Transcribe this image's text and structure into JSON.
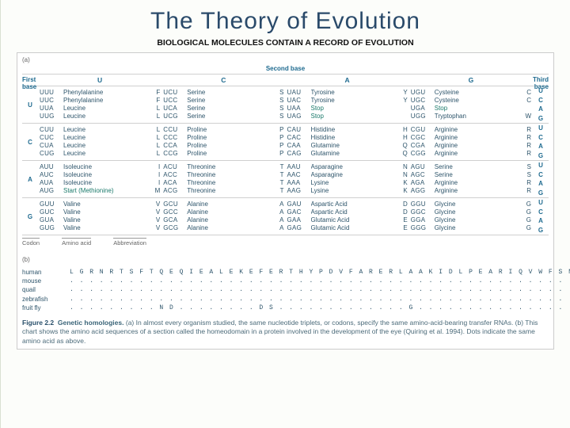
{
  "title": "The Theory of Evolution",
  "subtitle": "BIOLOGICAL MOLECULES CONTAIN A RECORD OF EVOLUTION",
  "fig": {
    "tag_a": "(a)",
    "tag_b": "(b)",
    "hdr_first": "First\nbase",
    "hdr_second": "Second base",
    "hdr_third": "Third\nbase",
    "cols": [
      "U",
      "C",
      "A",
      "G"
    ],
    "rows": [
      "U",
      "C",
      "A",
      "G"
    ],
    "third": [
      "U",
      "C",
      "A",
      "G"
    ],
    "legend_codon": "Codon",
    "legend_aa": "Amino acid",
    "legend_ab": "Abbreviation",
    "cells": {
      "U": {
        "U": [
          [
            "UUU",
            "Phenylalanine",
            "F"
          ],
          [
            "UUC",
            "Phenylalanine",
            "F"
          ],
          [
            "UUA",
            "Leucine",
            "L"
          ],
          [
            "UUG",
            "Leucine",
            "L"
          ]
        ],
        "C": [
          [
            "UCU",
            "Serine",
            "S"
          ],
          [
            "UCC",
            "Serine",
            "S"
          ],
          [
            "UCA",
            "Serine",
            "S"
          ],
          [
            "UCG",
            "Serine",
            "S"
          ]
        ],
        "A": [
          [
            "UAU",
            "Tyrosine",
            "Y"
          ],
          [
            "UAC",
            "Tyrosine",
            "Y"
          ],
          [
            "UAA",
            "Stop",
            ""
          ],
          [
            "UAG",
            "Stop",
            ""
          ]
        ],
        "G": [
          [
            "UGU",
            "Cysteine",
            "C"
          ],
          [
            "UGC",
            "Cysteine",
            "C"
          ],
          [
            "UGA",
            "Stop",
            ""
          ],
          [
            "UGG",
            "Tryptophan",
            "W"
          ]
        ]
      },
      "C": {
        "U": [
          [
            "CUU",
            "Leucine",
            "L"
          ],
          [
            "CUC",
            "Leucine",
            "L"
          ],
          [
            "CUA",
            "Leucine",
            "L"
          ],
          [
            "CUG",
            "Leucine",
            "L"
          ]
        ],
        "C": [
          [
            "CCU",
            "Proline",
            "P"
          ],
          [
            "CCC",
            "Proline",
            "P"
          ],
          [
            "CCA",
            "Proline",
            "P"
          ],
          [
            "CCG",
            "Proline",
            "P"
          ]
        ],
        "A": [
          [
            "CAU",
            "Histidine",
            "H"
          ],
          [
            "CAC",
            "Histidine",
            "H"
          ],
          [
            "CAA",
            "Glutamine",
            "Q"
          ],
          [
            "CAG",
            "Glutamine",
            "Q"
          ]
        ],
        "G": [
          [
            "CGU",
            "Arginine",
            "R"
          ],
          [
            "CGC",
            "Arginine",
            "R"
          ],
          [
            "CGA",
            "Arginine",
            "R"
          ],
          [
            "CGG",
            "Arginine",
            "R"
          ]
        ]
      },
      "A": {
        "U": [
          [
            "AUU",
            "Isoleucine",
            "I"
          ],
          [
            "AUC",
            "Isoleucine",
            "I"
          ],
          [
            "AUA",
            "Isoleucine",
            "I"
          ],
          [
            "AUG",
            "Start (Methionine)",
            "M"
          ]
        ],
        "C": [
          [
            "ACU",
            "Threonine",
            "T"
          ],
          [
            "ACC",
            "Threonine",
            "T"
          ],
          [
            "ACA",
            "Threonine",
            "T"
          ],
          [
            "ACG",
            "Threonine",
            "T"
          ]
        ],
        "A": [
          [
            "AAU",
            "Asparagine",
            "N"
          ],
          [
            "AAC",
            "Asparagine",
            "N"
          ],
          [
            "AAA",
            "Lysine",
            "K"
          ],
          [
            "AAG",
            "Lysine",
            "K"
          ]
        ],
        "G": [
          [
            "AGU",
            "Serine",
            "S"
          ],
          [
            "AGC",
            "Serine",
            "S"
          ],
          [
            "AGA",
            "Arginine",
            "R"
          ],
          [
            "AGG",
            "Arginine",
            "R"
          ]
        ]
      },
      "G": {
        "U": [
          [
            "GUU",
            "Valine",
            "V"
          ],
          [
            "GUC",
            "Valine",
            "V"
          ],
          [
            "GUA",
            "Valine",
            "V"
          ],
          [
            "GUG",
            "Valine",
            "V"
          ]
        ],
        "C": [
          [
            "GCU",
            "Alanine",
            "A"
          ],
          [
            "GCC",
            "Alanine",
            "A"
          ],
          [
            "GCA",
            "Alanine",
            "A"
          ],
          [
            "GCG",
            "Alanine",
            "A"
          ]
        ],
        "A": [
          [
            "GAU",
            "Aspartic Acid",
            "D"
          ],
          [
            "GAC",
            "Aspartic Acid",
            "D"
          ],
          [
            "GAA",
            "Glutamic Acid",
            "E"
          ],
          [
            "GAG",
            "Glutamic Acid",
            "E"
          ]
        ],
        "G": [
          [
            "GGU",
            "Glycine",
            "G"
          ],
          [
            "GGC",
            "Glycine",
            "G"
          ],
          [
            "GGA",
            "Glycine",
            "G"
          ],
          [
            "GGG",
            "Glycine",
            "G"
          ]
        ]
      }
    }
  },
  "homology": {
    "species": [
      "human",
      "mouse",
      "quail",
      "zebrafish",
      "fruit fly"
    ],
    "seq": {
      "human": "L G R N R T S F T Q E Q I E A L E K E F E R T H Y P D V F A R E R L A A K I D L P E A R I Q V W F S N R R A K W R R E L",
      "mouse": ". . . . . . . . . . . . . . . . . . . . . . . . . . . . . . . . . . . . . . . . . . . . . . . . . . . . . . . . . . .",
      "quail": ". . . . . . . . . . . . . . . . . . . . . . . . . . . . . . . . . . . . . . . . . . . . . . . . . . . . . . . . . . .",
      "zebrafish": ". . . . . . . . . . . . . . . . . . . . . . . . . . . . . . . . . . . . . . . . . . . . . . . . . . . . . . . . . . .",
      "fruit fly": ". . . . . . . . . N D . . . . . . . . D S . . . . . . . . . . . . . G . . . . . . . . . . . . . . . . . . . . . . . ."
    }
  },
  "caption": {
    "fig": "Figure 2.2",
    "title": "Genetic homologies.",
    "body": "(a) In almost every organism studied, the same nucleotide triplets, or codons, specify the same amino-acid-bearing transfer RNAs. (b) This chart shows the amino acid sequences of a section called the homeodomain in a protein involved in the development of the eye (Quiring et al. 1994). Dots indicate the same amino acid as above."
  }
}
